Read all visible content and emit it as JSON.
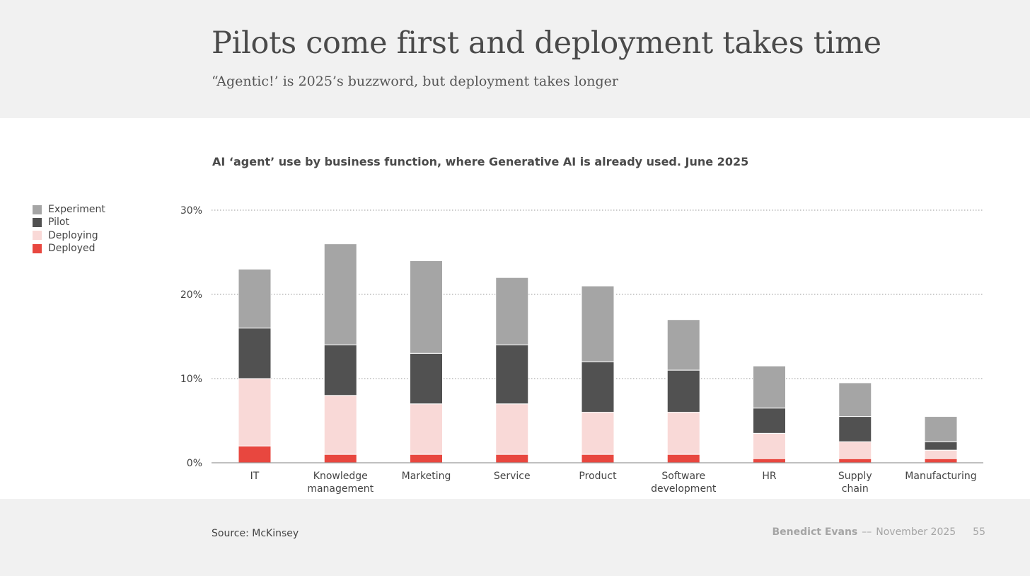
{
  "header": {
    "title": "Pilots come first and deployment takes time",
    "subtitle": "“Agentic!’ is 2025’s buzzword, but deployment takes longer"
  },
  "footer": {
    "source": "Source: McKinsey",
    "author": "Benedict Evans",
    "separator": "––",
    "date": "November 2025",
    "page": "55"
  },
  "chart_data": {
    "type": "bar",
    "stacked": true,
    "title": "AI ‘agent’ use by business function, where Generative AI is already used. June 2025",
    "categories": [
      "IT",
      "Knowledge\nmanagement",
      "Marketing",
      "Service",
      "Product",
      "Software\ndevelopment",
      "HR",
      "Supply\nchain",
      "Manufacturing"
    ],
    "series": [
      {
        "name": "Deployed",
        "color": "#e8473f",
        "values": [
          2,
          1,
          1,
          1,
          1,
          1,
          0.5,
          0.5,
          0.5
        ]
      },
      {
        "name": "Deploying",
        "color": "#f9d9d7",
        "values": [
          8,
          7,
          6,
          6,
          5,
          5,
          3,
          2,
          1
        ]
      },
      {
        "name": "Pilot",
        "color": "#515151",
        "values": [
          6,
          6,
          6,
          7,
          6,
          5,
          3,
          3,
          1
        ]
      },
      {
        "name": "Experiment",
        "color": "#a5a5a5",
        "values": [
          7,
          12,
          11,
          8,
          9,
          6,
          5,
          4,
          3
        ]
      }
    ],
    "legend_order": [
      "Experiment",
      "Pilot",
      "Deploying",
      "Deployed"
    ],
    "yticks": [
      0,
      10,
      20,
      30
    ],
    "ytick_labels": [
      "0%",
      "10%",
      "20%",
      "30%"
    ],
    "ylim": [
      0,
      30
    ],
    "grid": true,
    "legend_position": "top-left",
    "xlabel": "",
    "ylabel": ""
  }
}
